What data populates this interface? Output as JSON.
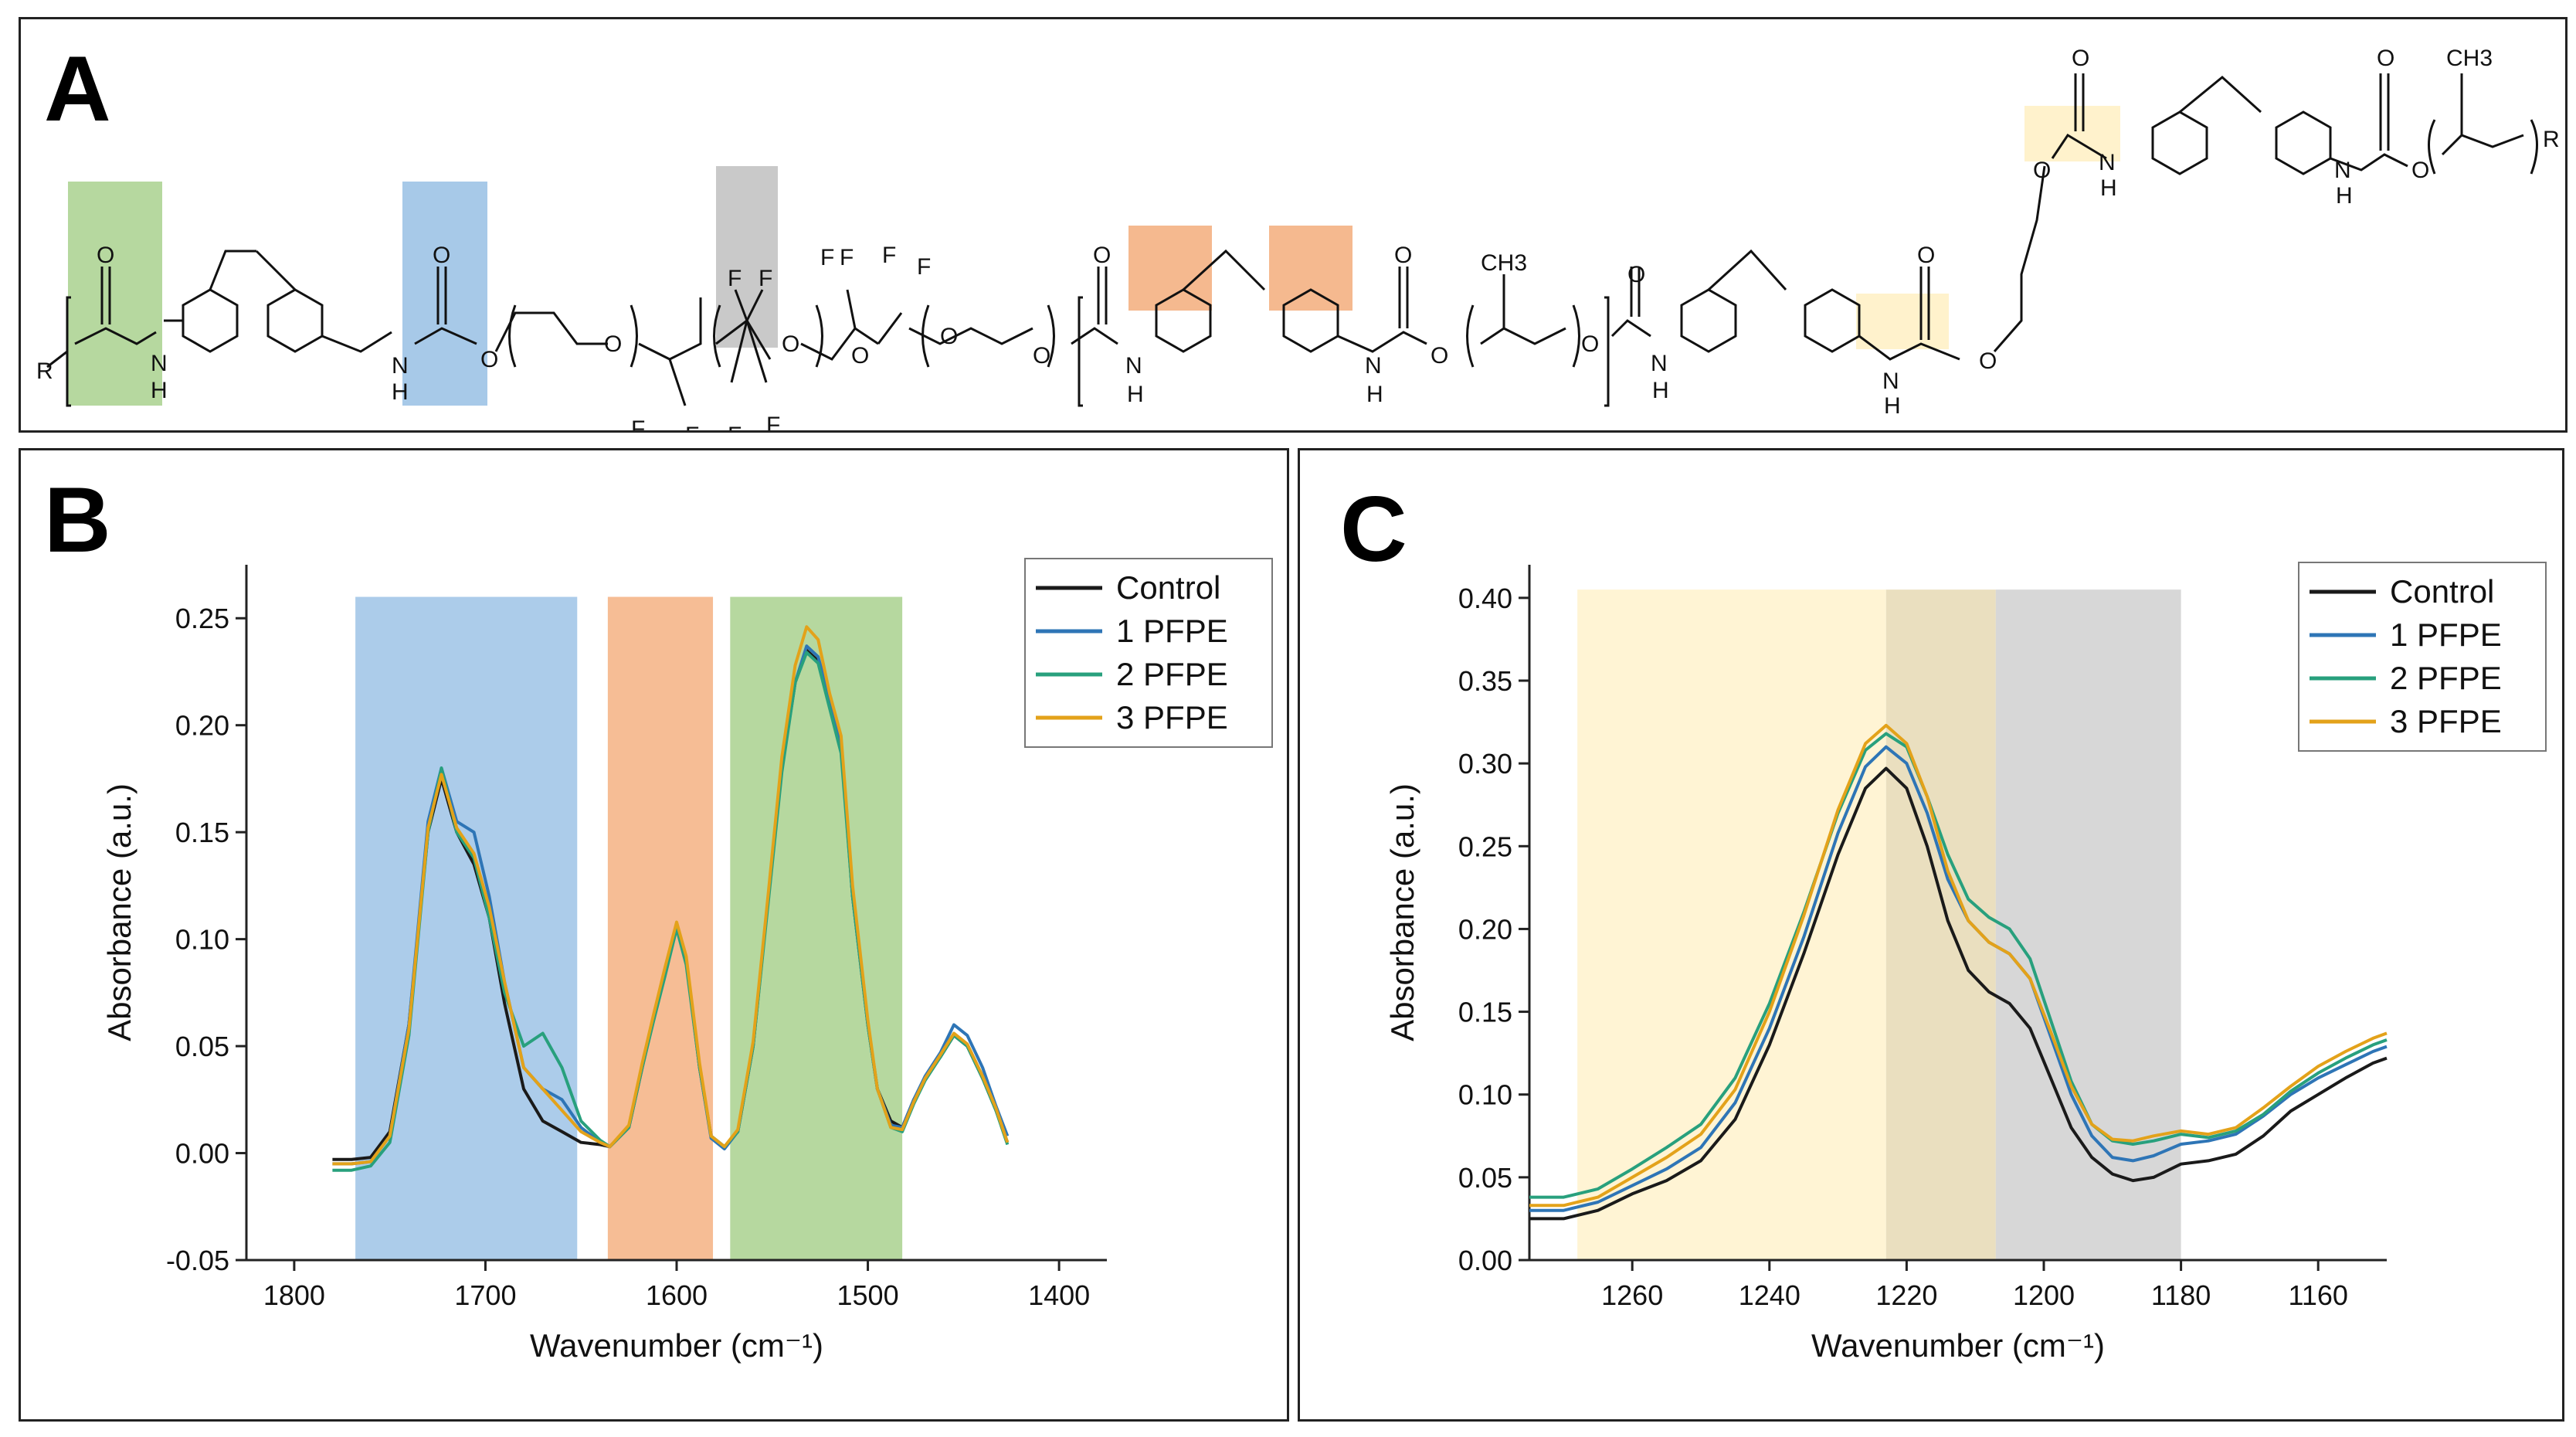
{
  "panel_a": {
    "letter": "A",
    "atom_labels": {
      "O": "O",
      "N": "N",
      "H": "H",
      "F": "F",
      "R": "R",
      "CH3": "CH3"
    },
    "highlight_colors": {
      "green": "#a9d18e",
      "blue": "#9dc3e6",
      "gray": "#bfbfbf",
      "orange": "#f4b183",
      "yellow": "#fff2cc"
    }
  },
  "chart_data": [
    {
      "panel": "B",
      "type": "line",
      "xlabel": "Wavenumber (cm⁻¹)",
      "ylabel": "Absorbance (a.u.)",
      "xlim": [
        1825,
        1375
      ],
      "ylim": [
        -0.05,
        0.275
      ],
      "xticks": [
        "1800",
        "1700",
        "1600",
        "1500",
        "1400"
      ],
      "yticks": [
        "-0.05",
        "0.00",
        "0.05",
        "0.10",
        "0.15",
        "0.20",
        "0.25"
      ],
      "legend_position": "top-right",
      "shaded_regions": [
        {
          "from": 1768,
          "to": 1652,
          "color": "#9dc3e6"
        },
        {
          "from": 1636,
          "to": 1581,
          "color": "#f4b183"
        },
        {
          "from": 1572,
          "to": 1482,
          "color": "#a9d18e"
        }
      ],
      "series": [
        {
          "name": "Control",
          "color": "#1a1a1a",
          "x": [
            1780,
            1770,
            1760,
            1750,
            1740,
            1730,
            1723,
            1715,
            1706,
            1698,
            1690,
            1680,
            1670,
            1660,
            1650,
            1640,
            1635,
            1625,
            1618,
            1612,
            1606,
            1600,
            1595,
            1588,
            1582,
            1575,
            1568,
            1560,
            1552,
            1545,
            1538,
            1532,
            1526,
            1520,
            1514,
            1508,
            1500,
            1495,
            1488,
            1482,
            1476,
            1470,
            1462,
            1455,
            1448,
            1440,
            1433,
            1427
          ],
          "y": [
            -0.003,
            -0.003,
            -0.002,
            0.01,
            0.06,
            0.15,
            0.175,
            0.15,
            0.135,
            0.11,
            0.07,
            0.03,
            0.015,
            0.01,
            0.005,
            0.004,
            0.003,
            0.012,
            0.04,
            0.063,
            0.085,
            0.105,
            0.09,
            0.04,
            0.008,
            0.003,
            0.01,
            0.05,
            0.12,
            0.18,
            0.22,
            0.235,
            0.23,
            0.21,
            0.19,
            0.12,
            0.06,
            0.03,
            0.015,
            0.012,
            0.025,
            0.035,
            0.045,
            0.055,
            0.05,
            0.035,
            0.02,
            0.005
          ]
        },
        {
          "name": "1 PFPE",
          "color": "#2e75b6",
          "x": [
            1780,
            1770,
            1760,
            1750,
            1740,
            1730,
            1723,
            1715,
            1706,
            1698,
            1690,
            1680,
            1670,
            1660,
            1650,
            1640,
            1635,
            1625,
            1618,
            1612,
            1606,
            1600,
            1595,
            1588,
            1582,
            1575,
            1568,
            1560,
            1552,
            1545,
            1538,
            1532,
            1526,
            1520,
            1514,
            1508,
            1500,
            1495,
            1488,
            1482,
            1476,
            1470,
            1462,
            1455,
            1448,
            1440,
            1433,
            1427
          ],
          "y": [
            -0.005,
            -0.005,
            -0.004,
            0.008,
            0.06,
            0.155,
            0.18,
            0.155,
            0.15,
            0.12,
            0.08,
            0.04,
            0.03,
            0.025,
            0.012,
            0.005,
            0.003,
            0.012,
            0.04,
            0.063,
            0.085,
            0.107,
            0.09,
            0.04,
            0.007,
            0.002,
            0.01,
            0.05,
            0.12,
            0.18,
            0.22,
            0.237,
            0.232,
            0.212,
            0.192,
            0.12,
            0.06,
            0.03,
            0.013,
            0.012,
            0.025,
            0.036,
            0.047,
            0.06,
            0.055,
            0.04,
            0.022,
            0.008
          ]
        },
        {
          "name": "2 PFPE",
          "color": "#28a07d",
          "x": [
            1780,
            1770,
            1760,
            1750,
            1740,
            1730,
            1723,
            1715,
            1706,
            1698,
            1690,
            1680,
            1670,
            1660,
            1650,
            1640,
            1635,
            1625,
            1618,
            1612,
            1606,
            1600,
            1595,
            1588,
            1582,
            1575,
            1568,
            1560,
            1552,
            1545,
            1538,
            1532,
            1526,
            1520,
            1514,
            1508,
            1500,
            1495,
            1488,
            1482,
            1476,
            1470,
            1462,
            1455,
            1448,
            1440,
            1433,
            1427
          ],
          "y": [
            -0.008,
            -0.008,
            -0.006,
            0.005,
            0.055,
            0.15,
            0.18,
            0.15,
            0.138,
            0.11,
            0.075,
            0.05,
            0.056,
            0.04,
            0.015,
            0.006,
            0.003,
            0.012,
            0.04,
            0.062,
            0.083,
            0.105,
            0.088,
            0.04,
            0.008,
            0.003,
            0.01,
            0.05,
            0.118,
            0.178,
            0.22,
            0.234,
            0.229,
            0.208,
            0.187,
            0.12,
            0.06,
            0.03,
            0.012,
            0.01,
            0.023,
            0.034,
            0.045,
            0.055,
            0.05,
            0.035,
            0.02,
            0.004
          ]
        },
        {
          "name": "3 PFPE",
          "color": "#e3a21a",
          "x": [
            1780,
            1770,
            1760,
            1750,
            1740,
            1730,
            1723,
            1715,
            1706,
            1698,
            1690,
            1680,
            1670,
            1660,
            1650,
            1640,
            1635,
            1625,
            1618,
            1612,
            1606,
            1600,
            1595,
            1588,
            1582,
            1575,
            1568,
            1560,
            1552,
            1545,
            1538,
            1532,
            1526,
            1520,
            1514,
            1508,
            1500,
            1495,
            1488,
            1482,
            1476,
            1470,
            1462,
            1455,
            1448,
            1440,
            1433,
            1427
          ],
          "y": [
            -0.005,
            -0.005,
            -0.004,
            0.008,
            0.058,
            0.152,
            0.177,
            0.152,
            0.14,
            0.115,
            0.08,
            0.04,
            0.03,
            0.02,
            0.01,
            0.005,
            0.003,
            0.013,
            0.042,
            0.065,
            0.087,
            0.108,
            0.092,
            0.042,
            0.008,
            0.003,
            0.011,
            0.052,
            0.122,
            0.185,
            0.228,
            0.246,
            0.24,
            0.215,
            0.195,
            0.125,
            0.062,
            0.03,
            0.012,
            0.011,
            0.024,
            0.035,
            0.046,
            0.056,
            0.051,
            0.036,
            0.021,
            0.005
          ]
        }
      ]
    },
    {
      "panel": "C",
      "type": "line",
      "xlabel": "Wavenumber (cm⁻¹)",
      "ylabel": "Absorbance (a.u.)",
      "xlim": [
        1275,
        1150
      ],
      "ylim": [
        0.0,
        0.42
      ],
      "xticks": [
        "1260",
        "1240",
        "1220",
        "1200",
        "1180",
        "1160"
      ],
      "yticks": [
        "0.00",
        "0.05",
        "0.10",
        "0.15",
        "0.20",
        "0.25",
        "0.30",
        "0.35",
        "0.40"
      ],
      "legend_position": "top-right",
      "shaded_regions": [
        {
          "from": 1268,
          "to": 1223,
          "color": "#fff2cc"
        },
        {
          "from": 1223,
          "to": 1207,
          "color": "#e6d9b4"
        },
        {
          "from": 1207,
          "to": 1180,
          "color": "#d0d0d0"
        }
      ],
      "series": [
        {
          "name": "Control",
          "color": "#1a1a1a",
          "x": [
            1275,
            1270,
            1265,
            1260,
            1255,
            1250,
            1245,
            1240,
            1235,
            1230,
            1226,
            1223,
            1220,
            1217,
            1214,
            1211,
            1208,
            1205,
            1202,
            1199,
            1196,
            1193,
            1190,
            1187,
            1184,
            1180,
            1176,
            1172,
            1168,
            1164,
            1160,
            1156,
            1152,
            1150
          ],
          "y": [
            0.025,
            0.025,
            0.03,
            0.04,
            0.048,
            0.06,
            0.085,
            0.13,
            0.185,
            0.245,
            0.285,
            0.297,
            0.285,
            0.25,
            0.205,
            0.175,
            0.162,
            0.155,
            0.14,
            0.11,
            0.08,
            0.062,
            0.052,
            0.048,
            0.05,
            0.058,
            0.06,
            0.064,
            0.075,
            0.09,
            0.1,
            0.11,
            0.119,
            0.122
          ]
        },
        {
          "name": "1 PFPE",
          "color": "#2e75b6",
          "x": [
            1275,
            1270,
            1265,
            1260,
            1255,
            1250,
            1245,
            1240,
            1235,
            1230,
            1226,
            1223,
            1220,
            1217,
            1214,
            1211,
            1208,
            1205,
            1202,
            1199,
            1196,
            1193,
            1190,
            1187,
            1184,
            1180,
            1176,
            1172,
            1168,
            1164,
            1160,
            1156,
            1152,
            1150
          ],
          "y": [
            0.03,
            0.03,
            0.035,
            0.045,
            0.055,
            0.068,
            0.095,
            0.14,
            0.195,
            0.258,
            0.298,
            0.31,
            0.3,
            0.27,
            0.23,
            0.205,
            0.192,
            0.185,
            0.17,
            0.135,
            0.1,
            0.075,
            0.062,
            0.06,
            0.063,
            0.07,
            0.072,
            0.076,
            0.087,
            0.1,
            0.11,
            0.118,
            0.126,
            0.129
          ]
        },
        {
          "name": "2 PFPE",
          "color": "#28a07d",
          "x": [
            1275,
            1270,
            1265,
            1260,
            1255,
            1250,
            1245,
            1240,
            1235,
            1230,
            1226,
            1223,
            1220,
            1217,
            1214,
            1211,
            1208,
            1205,
            1202,
            1199,
            1196,
            1193,
            1190,
            1187,
            1184,
            1180,
            1176,
            1172,
            1168,
            1164,
            1160,
            1156,
            1152,
            1150
          ],
          "y": [
            0.038,
            0.038,
            0.043,
            0.055,
            0.068,
            0.082,
            0.11,
            0.155,
            0.21,
            0.27,
            0.308,
            0.318,
            0.31,
            0.28,
            0.245,
            0.218,
            0.207,
            0.2,
            0.182,
            0.145,
            0.108,
            0.082,
            0.072,
            0.07,
            0.072,
            0.076,
            0.074,
            0.078,
            0.088,
            0.102,
            0.113,
            0.122,
            0.13,
            0.133
          ]
        },
        {
          "name": "3 PFPE",
          "color": "#e3a21a",
          "x": [
            1275,
            1270,
            1265,
            1260,
            1255,
            1250,
            1245,
            1240,
            1235,
            1230,
            1226,
            1223,
            1220,
            1217,
            1214,
            1211,
            1208,
            1205,
            1202,
            1199,
            1196,
            1193,
            1190,
            1187,
            1184,
            1180,
            1176,
            1172,
            1168,
            1164,
            1160,
            1156,
            1152,
            1150
          ],
          "y": [
            0.033,
            0.033,
            0.038,
            0.05,
            0.062,
            0.076,
            0.103,
            0.15,
            0.208,
            0.272,
            0.312,
            0.323,
            0.312,
            0.28,
            0.235,
            0.205,
            0.192,
            0.185,
            0.17,
            0.138,
            0.105,
            0.082,
            0.073,
            0.072,
            0.075,
            0.078,
            0.076,
            0.08,
            0.092,
            0.105,
            0.117,
            0.126,
            0.134,
            0.137
          ]
        }
      ]
    }
  ]
}
